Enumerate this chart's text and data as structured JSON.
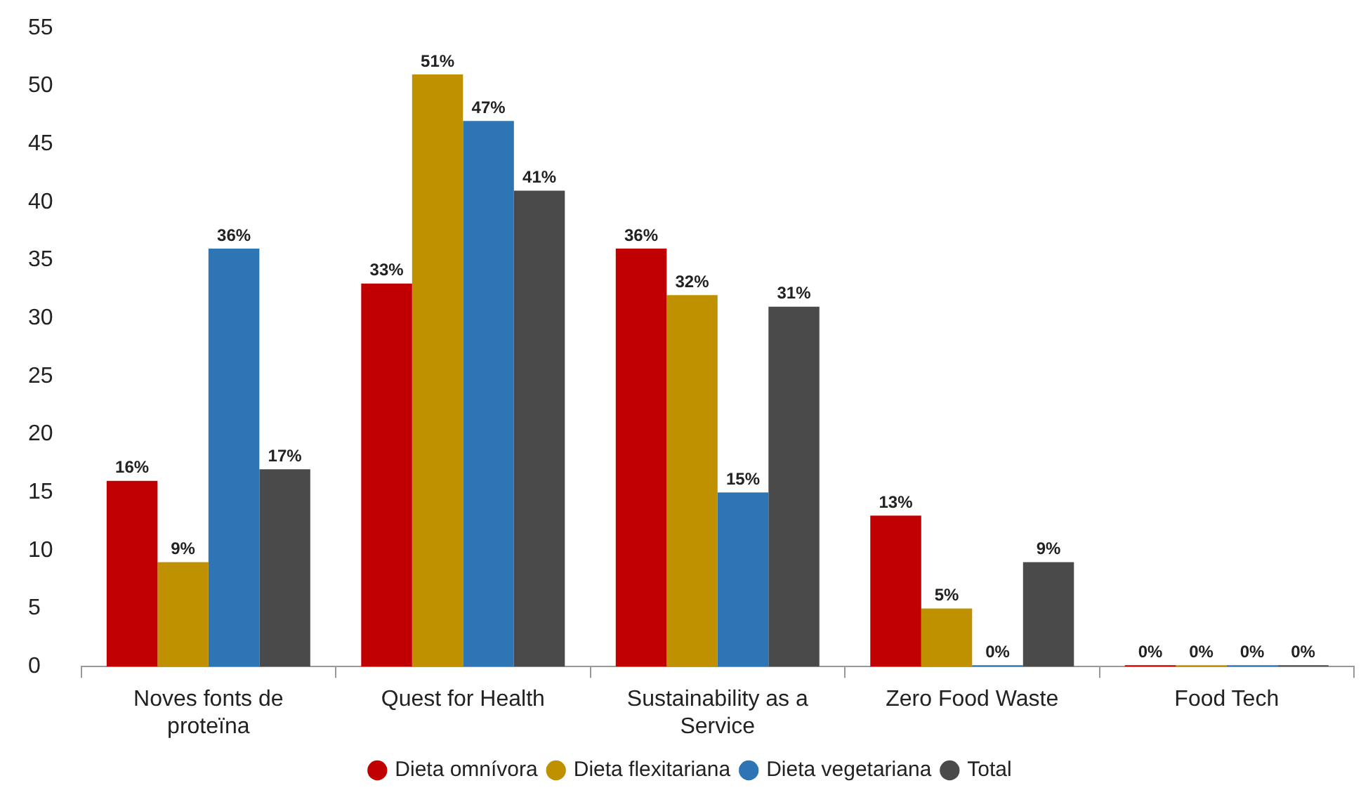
{
  "chart_data": {
    "type": "bar",
    "categories": [
      "Noves fonts de proteïna",
      "Quest for Health",
      "Sustainability as a Service",
      "Zero Food Waste",
      "Food Tech"
    ],
    "series": [
      {
        "name": "Dieta omnívora",
        "color": "#c00000",
        "values": [
          16,
          33,
          36,
          13,
          0
        ],
        "value_labels": [
          "16%",
          "33%",
          "36%",
          "13%",
          "0%"
        ]
      },
      {
        "name": "Dieta flexitariana",
        "color": "#bf9000",
        "values": [
          9,
          51,
          32,
          5,
          0
        ],
        "value_labels": [
          "9%",
          "51%",
          "32%",
          "5%",
          "0%"
        ]
      },
      {
        "name": "Dieta vegetariana",
        "color": "#2e75b6",
        "values": [
          36,
          47,
          15,
          0,
          0
        ],
        "value_labels": [
          "36%",
          "47%",
          "15%",
          "0%",
          "0%"
        ]
      },
      {
        "name": "Total",
        "color": "#4a4a4a",
        "values": [
          17,
          41,
          31,
          9,
          0
        ],
        "value_labels": [
          "17%",
          "41%",
          "31%",
          "9%",
          "0%"
        ]
      }
    ],
    "ylim": [
      0,
      55
    ],
    "yticks": [
      0,
      5,
      10,
      15,
      20,
      25,
      30,
      35,
      40,
      45,
      50,
      55
    ],
    "grid": false,
    "legend": "bottom"
  }
}
